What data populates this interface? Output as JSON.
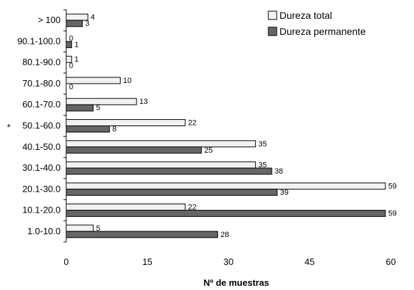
{
  "chart_data": {
    "type": "bar",
    "orientation": "horizontal",
    "categories": [
      "> 100",
      "90.1-100.0",
      "80.1-90.0",
      "70.1-80.0",
      "60.1-70.0",
      "50.1-60.0",
      "40.1-50.0",
      "30.1-40.0",
      "20.1-30.0",
      "10.1-20.0",
      "1.0-10.0"
    ],
    "series": [
      {
        "name": "Dureza total",
        "values": [
          4,
          0,
          1,
          10,
          13,
          22,
          35,
          35,
          59,
          22,
          5
        ],
        "color": "#f2f2f2"
      },
      {
        "name": "Dureza permanente",
        "values": [
          3,
          1,
          0,
          0,
          5,
          8,
          25,
          38,
          39,
          59,
          28
        ],
        "color": "#666666"
      }
    ],
    "xlabel": "Nº de muestras",
    "ylabel": "",
    "title": "",
    "xlim": [
      0,
      63
    ],
    "xticks": [
      0,
      15,
      30,
      45,
      60
    ],
    "grid": false,
    "legend": "top-right",
    "stray_mark": "*"
  }
}
